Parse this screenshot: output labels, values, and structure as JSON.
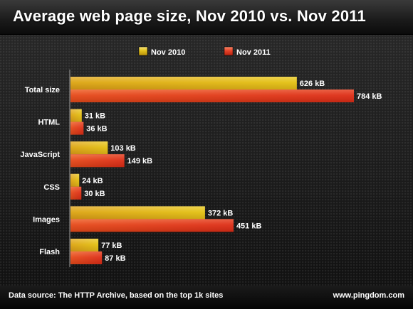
{
  "title": "Average web page size, Nov 2010 vs. Nov 2011",
  "footer": {
    "source": "Data source: The HTTP Archive, based on the top 1k sites",
    "brand": "www.pingdom.com"
  },
  "colors": {
    "nov2010": "#e3c21c",
    "nov2011": "#e6432a"
  },
  "chart_data": {
    "type": "bar",
    "orientation": "horizontal",
    "legend_position": "top-center",
    "grid": false,
    "categories": [
      "Total size",
      "HTML",
      "JavaScript",
      "CSS",
      "Images",
      "Flash"
    ],
    "unit": "kB",
    "xlim": [
      0,
      800
    ],
    "series": [
      {
        "name": "Nov 2010",
        "values": [
          626,
          31,
          103,
          24,
          372,
          77
        ],
        "labels": [
          "626 kB",
          "31 kB",
          "103 kB",
          "24 kB",
          "372 kB",
          "77 kB"
        ]
      },
      {
        "name": "Nov 2011",
        "values": [
          784,
          36,
          149,
          30,
          451,
          87
        ],
        "labels": [
          "784 kB",
          "36 kB",
          "149 kB",
          "30 kB",
          "451 kB",
          "87 kB"
        ]
      }
    ]
  }
}
